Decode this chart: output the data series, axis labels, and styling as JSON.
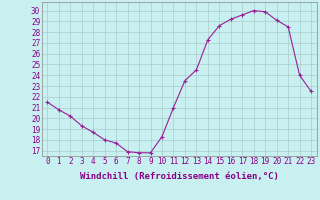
{
  "x": [
    0,
    1,
    2,
    3,
    4,
    5,
    6,
    7,
    8,
    9,
    10,
    11,
    12,
    13,
    14,
    15,
    16,
    17,
    18,
    19,
    20,
    21,
    22,
    23
  ],
  "y": [
    21.5,
    20.8,
    20.2,
    19.3,
    18.7,
    18.0,
    17.7,
    16.9,
    16.8,
    16.8,
    18.3,
    21.0,
    23.5,
    24.5,
    27.3,
    28.6,
    29.2,
    29.6,
    30.0,
    29.9,
    29.1,
    28.5,
    24.0,
    22.5
  ],
  "line_color": "#991f99",
  "marker": "+",
  "markersize": 3,
  "linewidth": 0.8,
  "bg_color": "#c8f0f0",
  "grid_color": "#aacccc",
  "xlabel": "Windchill (Refroidissement éolien,°C)",
  "xlabel_fontsize": 6.5,
  "ylabel_ticks": [
    17,
    18,
    19,
    20,
    21,
    22,
    23,
    24,
    25,
    26,
    27,
    28,
    29,
    30
  ],
  "ylim": [
    16.5,
    30.8
  ],
  "xlim": [
    -0.5,
    23.5
  ],
  "tick_fontsize": 5.5,
  "label_color": "#880088"
}
